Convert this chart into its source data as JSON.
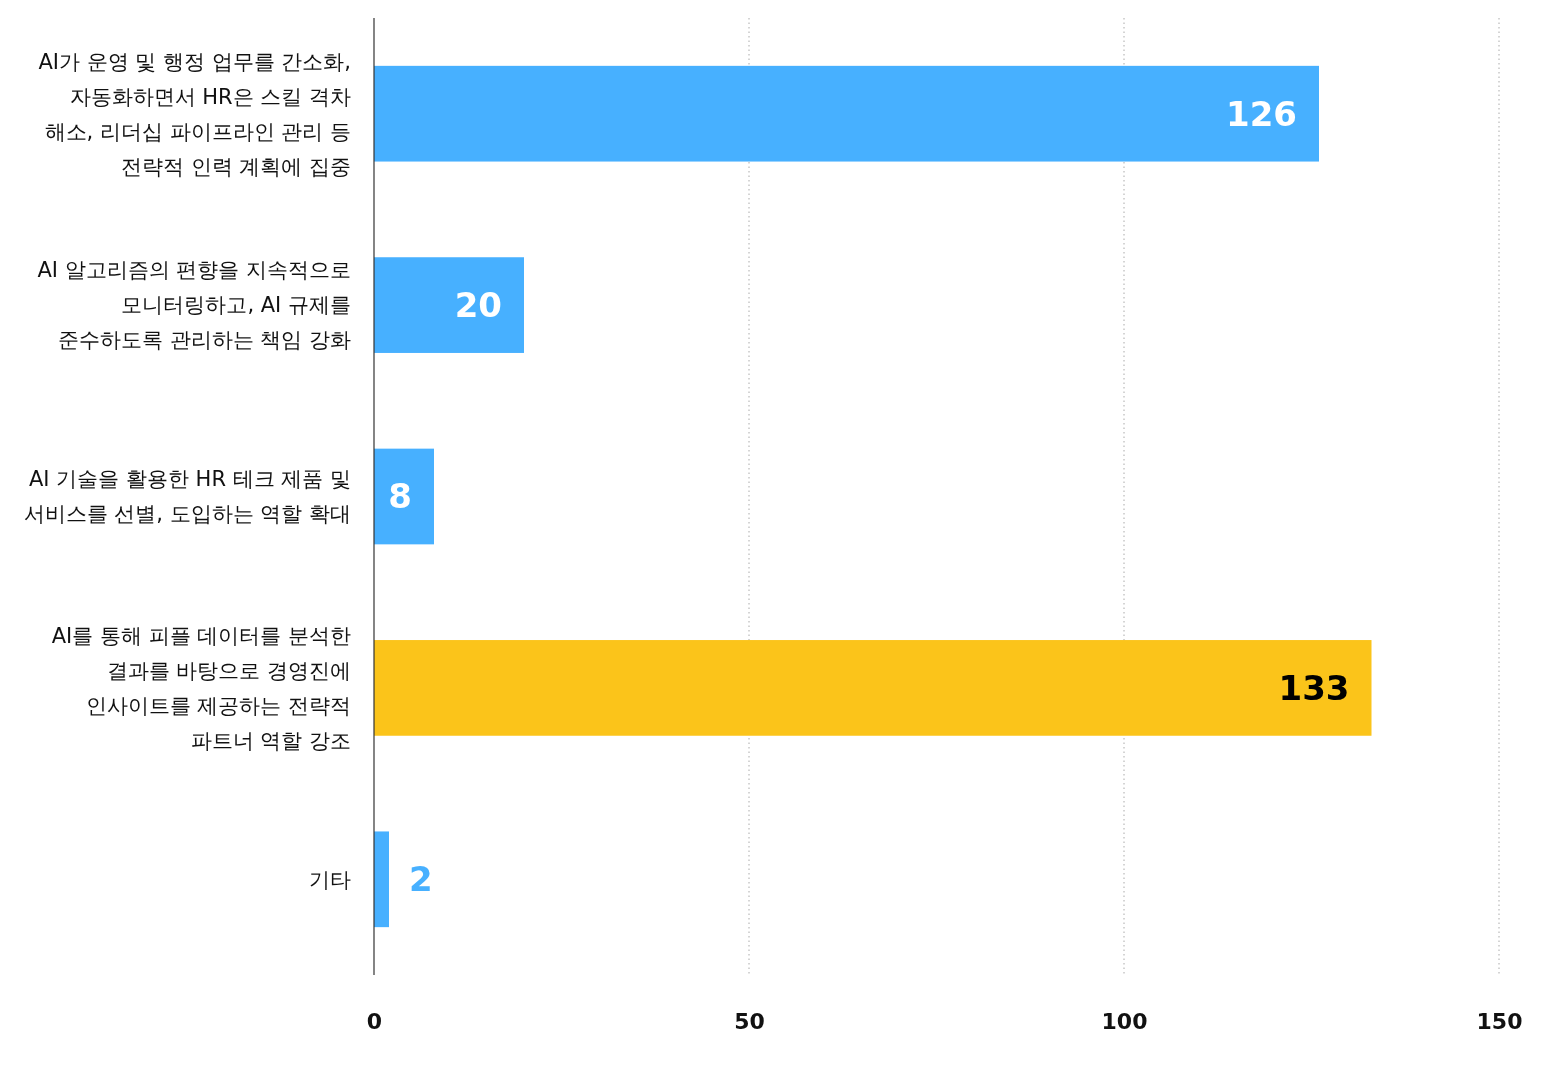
{
  "chart_data": {
    "type": "bar",
    "orientation": "horizontal",
    "categories": [
      "AI가 운영 및 행정 업무를 간소화, 자동화하면서 HR은 스킬 격차 해소, 리더십 파이프라인 관리 등 전략적 인력 계획에 집중",
      "AI 알고리즘의 편향을 지속적으로 모니터링하고, AI 규제를 준수하도록 관리하는 책임 강화",
      "AI 기술을 활용한 HR 테크 제품 및 서비스를 선별, 도입하는 역할 확대",
      "AI를 통해 피플 데이터를 분석한 결과를 바탕으로 경영진에 인사이트를 제공하는 전략적 파트너 역할 강조",
      "기타"
    ],
    "values": [
      126,
      20,
      8,
      133,
      2
    ],
    "colors": [
      "#47b0ff",
      "#47b0ff",
      "#47b0ff",
      "#fbc41a",
      "#47b0ff"
    ],
    "xlim": [
      0,
      150
    ],
    "xticks": [
      0,
      50,
      100,
      150
    ],
    "grid": "x",
    "data_labels": true
  }
}
